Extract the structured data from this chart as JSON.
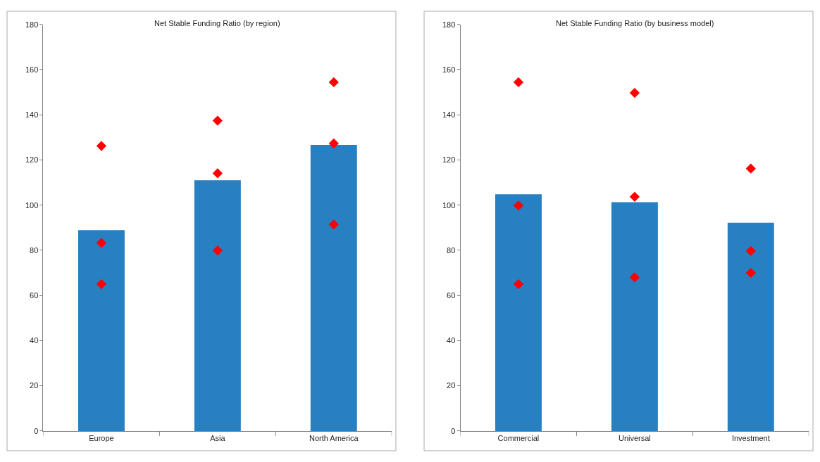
{
  "chart_data": [
    {
      "type": "bar",
      "title": "Net Stable Funding Ratio (by region)",
      "categories": [
        "Europe",
        "Asia",
        "North America"
      ],
      "ylim": [
        0,
        180
      ],
      "yticks": [
        0,
        20,
        40,
        60,
        80,
        100,
        120,
        140,
        160,
        180
      ],
      "series": [
        {
          "color": "#2680c2",
          "values": [
            88.9,
            111,
            126.7
          ]
        },
        {
          "type": "scatter",
          "color": "#ff0000",
          "marker": "diamond",
          "x": [
            "Europe",
            "Europe",
            "Europe",
            "Asia",
            "Asia",
            "Asia",
            "North America",
            "North America",
            "North America"
          ],
          "values": [
            126.2,
            83.3,
            65,
            137.4,
            114.1,
            79.9,
            154.4,
            127.3,
            91.4
          ]
        }
      ]
    },
    {
      "type": "bar",
      "title": "Net Stable Funding Ratio (by business model)",
      "categories": [
        "Commercial",
        "Universal",
        "Investment"
      ],
      "ylim": [
        0,
        180
      ],
      "yticks": [
        0,
        20,
        40,
        60,
        80,
        100,
        120,
        140,
        160,
        180
      ],
      "series": [
        {
          "color": "#2680c2",
          "values": [
            104.8,
            101.3,
            92.2
          ]
        },
        {
          "type": "scatter",
          "color": "#ff0000",
          "marker": "diamond",
          "x": [
            "Commercial",
            "Commercial",
            "Commercial",
            "Universal",
            "Universal",
            "Universal",
            "Investment",
            "Investment",
            "Investment"
          ],
          "values": [
            154.4,
            99.8,
            65,
            149.7,
            103.7,
            68,
            116.2,
            79.7,
            70
          ]
        }
      ]
    }
  ]
}
